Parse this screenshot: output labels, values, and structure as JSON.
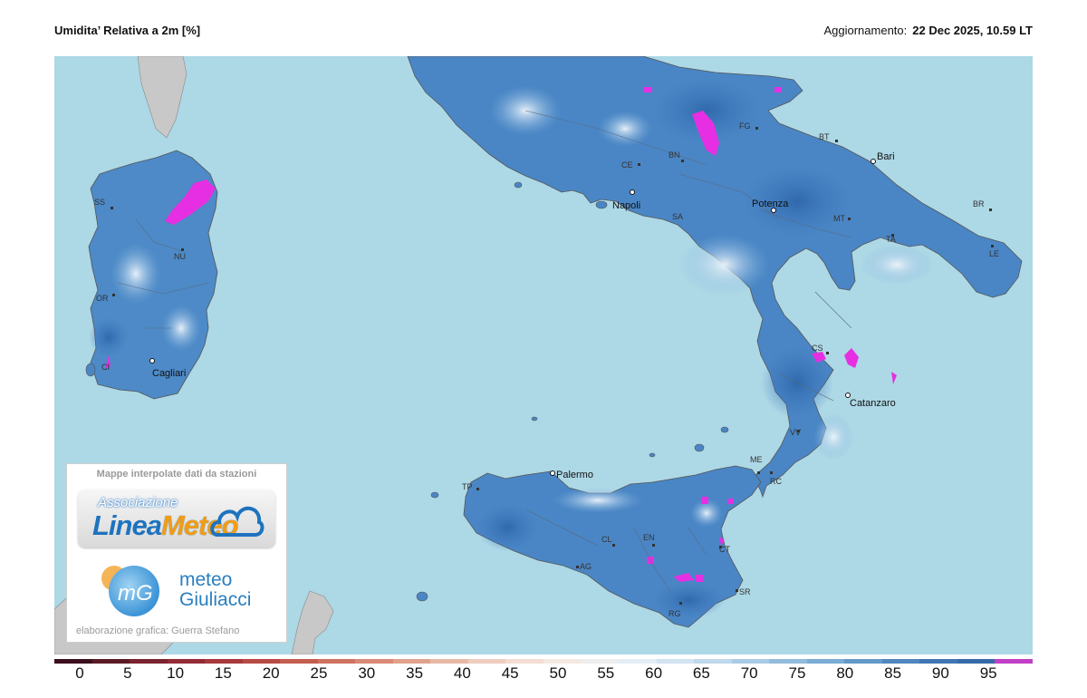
{
  "header": {
    "title": "Umidita’ Relativa a 2m [%]",
    "updated_label": "Aggiornamento:",
    "updated_value": "22 Dec 2025, 10.59 LT"
  },
  "colors": {
    "sea": "#add8e6",
    "land_low": "#e3eef7",
    "land_mid": "#78aedb",
    "land_high": "#3b78bd",
    "land_very_high": "#2d66aa",
    "saturation": "#e62fe2",
    "outside_land": "#c8c8c8"
  },
  "colorbar": {
    "colors": [
      "#3b0f1e",
      "#5c1a26",
      "#7a2330",
      "#922b35",
      "#a8383c",
      "#b84a45",
      "#c45d50",
      "#cf7261",
      "#d88a76",
      "#e0a28d",
      "#e7b8a6",
      "#eecdbf",
      "#f3ddd3",
      "#f4e8e3",
      "#eeeeee",
      "#e3edf5",
      "#d2e3f1",
      "#c0d8ec",
      "#aacbe5",
      "#92bcdd",
      "#7aacd5",
      "#6399c9",
      "#4f87be",
      "#3f76b2",
      "#356aa7",
      "#c13fc6"
    ],
    "ticks": [
      "0",
      "5",
      "10",
      "15",
      "20",
      "25",
      "30",
      "35",
      "40",
      "45",
      "50",
      "55",
      "60",
      "65",
      "70",
      "75",
      "80",
      "85",
      "90",
      "95"
    ]
  },
  "cities": [
    {
      "name": "Napoli"
    },
    {
      "name": "Potenza"
    },
    {
      "name": "Bari"
    },
    {
      "name": "Catanzaro"
    },
    {
      "name": "Palermo"
    },
    {
      "name": "Cagliari"
    }
  ],
  "province_codes": [
    "SS",
    "NU",
    "OR",
    "CI",
    "CE",
    "BN",
    "SA",
    "FG",
    "BT",
    "BR",
    "MT",
    "TA",
    "LE",
    "CS",
    "VV",
    "RC",
    "ME",
    "TP",
    "CL",
    "EN",
    "AG",
    "CT",
    "SR",
    "RG"
  ],
  "logo": {
    "caption": "Mappe interpolate dati da stazioni",
    "assoc": "Associazione",
    "brand_a": "Linea",
    "brand_b": "Meteo",
    "mg_initials": "mG",
    "mg_text1": "meteo",
    "mg_text2": "Giuliacci",
    "credit": "elaborazione grafica: Guerra Stefano"
  }
}
